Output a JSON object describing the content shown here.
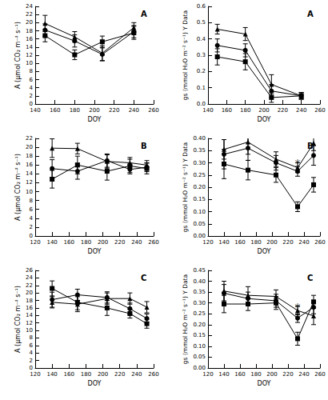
{
  "chart_data": [
    {
      "type": "line",
      "panel_label": "A",
      "x_label": "DOY",
      "y_label": "A (µmol CO₂ m⁻² s⁻¹)",
      "xlim": [
        140,
        260
      ],
      "xticks": [
        140,
        160,
        180,
        200,
        220,
        240,
        260
      ],
      "ylim": [
        0,
        24
      ],
      "yticks": [
        0,
        2,
        4,
        6,
        8,
        10,
        12,
        14,
        16,
        18,
        20,
        22,
        24
      ],
      "x": [
        150,
        180,
        208,
        240
      ],
      "series": [
        {
          "marker": "triangle",
          "color": "#000000",
          "values": [
            19.8,
            16.5,
            12.5,
            18.8
          ],
          "errors": [
            2.0,
            1.3,
            1.8,
            1.2
          ]
        },
        {
          "marker": "circle",
          "color": "#000000",
          "values": [
            18.2,
            15.5,
            12.2,
            17.8
          ],
          "errors": [
            1.5,
            1.5,
            1.6,
            1.5
          ]
        },
        {
          "marker": "square",
          "color": "#000000",
          "values": [
            16.8,
            12.1,
            15.3,
            17.5
          ],
          "errors": [
            1.5,
            1.2,
            1.4,
            1.6
          ]
        }
      ],
      "annotations": []
    },
    {
      "type": "line",
      "panel_label": "A",
      "x_label": "DOY",
      "y_label": "gs (mmol H₂O m⁻² s⁻¹) Y Data",
      "xlim": [
        140,
        260
      ],
      "xticks": [
        140,
        160,
        180,
        200,
        220,
        240,
        260
      ],
      "ylim": [
        0,
        0.6
      ],
      "yticks": [
        {
          "value": 0,
          "label": "0.0"
        },
        0.1,
        0.2,
        0.3,
        0.4,
        0.5,
        0.6
      ],
      "x": [
        150,
        180,
        208,
        240
      ],
      "series": [
        {
          "marker": "triangle",
          "color": "#000000",
          "values": [
            0.46,
            0.43,
            0.12,
            0.05
          ],
          "errors": [
            0.03,
            0.04,
            0.06,
            0.02
          ]
        },
        {
          "marker": "circle",
          "color": "#000000",
          "values": [
            0.36,
            0.33,
            0.08,
            0.05
          ],
          "errors": [
            0.04,
            0.04,
            0.04,
            0.02
          ]
        },
        {
          "marker": "square",
          "color": "#000000",
          "values": [
            0.29,
            0.26,
            0.04,
            0.05
          ],
          "errors": [
            0.05,
            0.05,
            0.03,
            0.02
          ]
        }
      ],
      "annotations": []
    },
    {
      "type": "line",
      "panel_label": "B",
      "x_label": "DOY",
      "y_label": "A (µmol CO₂ m⁻² s⁻¹)",
      "xlim": [
        120,
        260
      ],
      "xticks": [
        120,
        140,
        160,
        180,
        200,
        220,
        240,
        260
      ],
      "ylim": [
        0,
        22
      ],
      "yticks": [
        0,
        2,
        4,
        6,
        8,
        10,
        12,
        14,
        16,
        18,
        20,
        22
      ],
      "x": [
        140,
        170,
        205,
        232,
        252
      ],
      "series": [
        {
          "marker": "triangle",
          "color": "#000000",
          "values": [
            19.8,
            19.7,
            16.8,
            16.5,
            16.0
          ],
          "errors": [
            2.1,
            1.2,
            1.5,
            1.2,
            1.0
          ]
        },
        {
          "marker": "circle",
          "color": "#000000",
          "values": [
            15.2,
            14.6,
            17.0,
            15.0,
            15.5
          ],
          "errors": [
            2.0,
            1.8,
            1.5,
            1.0,
            1.0
          ]
        },
        {
          "marker": "square",
          "color": "#000000",
          "values": [
            12.8,
            16.0,
            14.6,
            15.8,
            15.2
          ],
          "errors": [
            2.0,
            2.0,
            2.0,
            1.5,
            1.2
          ]
        }
      ],
      "annotations": []
    },
    {
      "type": "line",
      "panel_label": "B",
      "x_label": "DOY",
      "y_label": "gs (mmol H₂O m⁻² s⁻¹) Y Data",
      "xlim": [
        120,
        260
      ],
      "xticks": [
        120,
        140,
        160,
        180,
        200,
        220,
        240,
        260
      ],
      "ylim": [
        0,
        0.4
      ],
      "yticks": [
        {
          "value": 0,
          "label": "0.00"
        },
        0.05,
        {
          "value": 0.1,
          "label": "0.10"
        },
        0.15,
        {
          "value": 0.2,
          "label": "0.20"
        },
        0.25,
        {
          "value": 0.3,
          "label": "0.30"
        },
        0.35,
        {
          "value": 0.4,
          "label": "0.40"
        }
      ],
      "x": [
        140,
        170,
        205,
        232,
        252
      ],
      "series": [
        {
          "marker": "triangle",
          "color": "#000000",
          "values": [
            0.355,
            0.385,
            0.315,
            0.28,
            0.38
          ],
          "errors": [
            0.04,
            0.05,
            0.03,
            0.02,
            0.03
          ]
        },
        {
          "marker": "circle",
          "color": "#000000",
          "values": [
            0.335,
            0.36,
            0.3,
            0.265,
            0.33
          ],
          "errors": [
            0.06,
            0.05,
            0.03,
            0.02,
            0.04
          ]
        },
        {
          "marker": "square",
          "color": "#000000",
          "values": [
            0.295,
            0.27,
            0.25,
            0.12,
            0.21
          ],
          "errors": [
            0.06,
            0.04,
            0.03,
            0.02,
            0.03
          ]
        }
      ],
      "annotations": [
        {
          "text": "*",
          "x": 232,
          "y": 0.3
        }
      ]
    },
    {
      "type": "line",
      "panel_label": "C",
      "x_label": "DOY",
      "y_label": "A (µmol CO₂ m⁻² s⁻¹)",
      "xlim": [
        120,
        260
      ],
      "xticks": [
        120,
        140,
        160,
        180,
        200,
        220,
        240,
        260
      ],
      "ylim": [
        0,
        26
      ],
      "yticks": [
        0,
        2,
        4,
        6,
        8,
        10,
        12,
        14,
        16,
        18,
        20,
        22,
        24,
        26
      ],
      "x": [
        140,
        170,
        205,
        232,
        252
      ],
      "series": [
        {
          "marker": "triangle",
          "color": "#000000",
          "values": [
            17.5,
            17.0,
            18.5,
            18.5,
            16.2
          ],
          "errors": [
            1.5,
            2.0,
            1.5,
            1.5,
            1.5
          ]
        },
        {
          "marker": "circle",
          "color": "#000000",
          "values": [
            18.2,
            19.5,
            18.8,
            15.8,
            13.2
          ],
          "errors": [
            2.0,
            1.5,
            1.5,
            1.5,
            1.2
          ]
        },
        {
          "marker": "square",
          "color": "#000000",
          "values": [
            21.2,
            17.5,
            16.0,
            14.5,
            11.8
          ],
          "errors": [
            2.0,
            2.0,
            2.0,
            1.2,
            1.2
          ]
        }
      ],
      "annotations": []
    },
    {
      "type": "line",
      "panel_label": "C",
      "x_label": "DOY",
      "y_label": "gs (mmol H₂O m⁻² s⁻¹) Y Data",
      "xlim": [
        120,
        260
      ],
      "xticks": [
        120,
        140,
        160,
        180,
        200,
        220,
        240,
        260
      ],
      "ylim": [
        0,
        0.45
      ],
      "yticks": [
        {
          "value": 0,
          "label": "0.00"
        },
        0.05,
        {
          "value": 0.1,
          "label": "0.10"
        },
        0.15,
        {
          "value": 0.2,
          "label": "0.20"
        },
        0.25,
        {
          "value": 0.3,
          "label": "0.30"
        },
        0.35,
        {
          "value": 0.4,
          "label": "0.40"
        },
        0.45
      ],
      "x": [
        140,
        170,
        205,
        232,
        252
      ],
      "series": [
        {
          "marker": "triangle",
          "color": "#000000",
          "values": [
            0.355,
            0.335,
            0.33,
            0.265,
            0.24
          ],
          "errors": [
            0.045,
            0.04,
            0.03,
            0.02,
            0.04
          ]
        },
        {
          "marker": "circle",
          "color": "#000000",
          "values": [
            0.345,
            0.32,
            0.31,
            0.23,
            0.28
          ],
          "errors": [
            0.04,
            0.03,
            0.03,
            0.02,
            0.03
          ]
        },
        {
          "marker": "square",
          "color": "#000000",
          "values": [
            0.295,
            0.295,
            0.3,
            0.135,
            0.305
          ],
          "errors": [
            0.04,
            0.03,
            0.03,
            0.03,
            0.03
          ]
        }
      ],
      "annotations": [
        {
          "text": "*",
          "x": 232,
          "y": 0.28
        }
      ]
    }
  ]
}
